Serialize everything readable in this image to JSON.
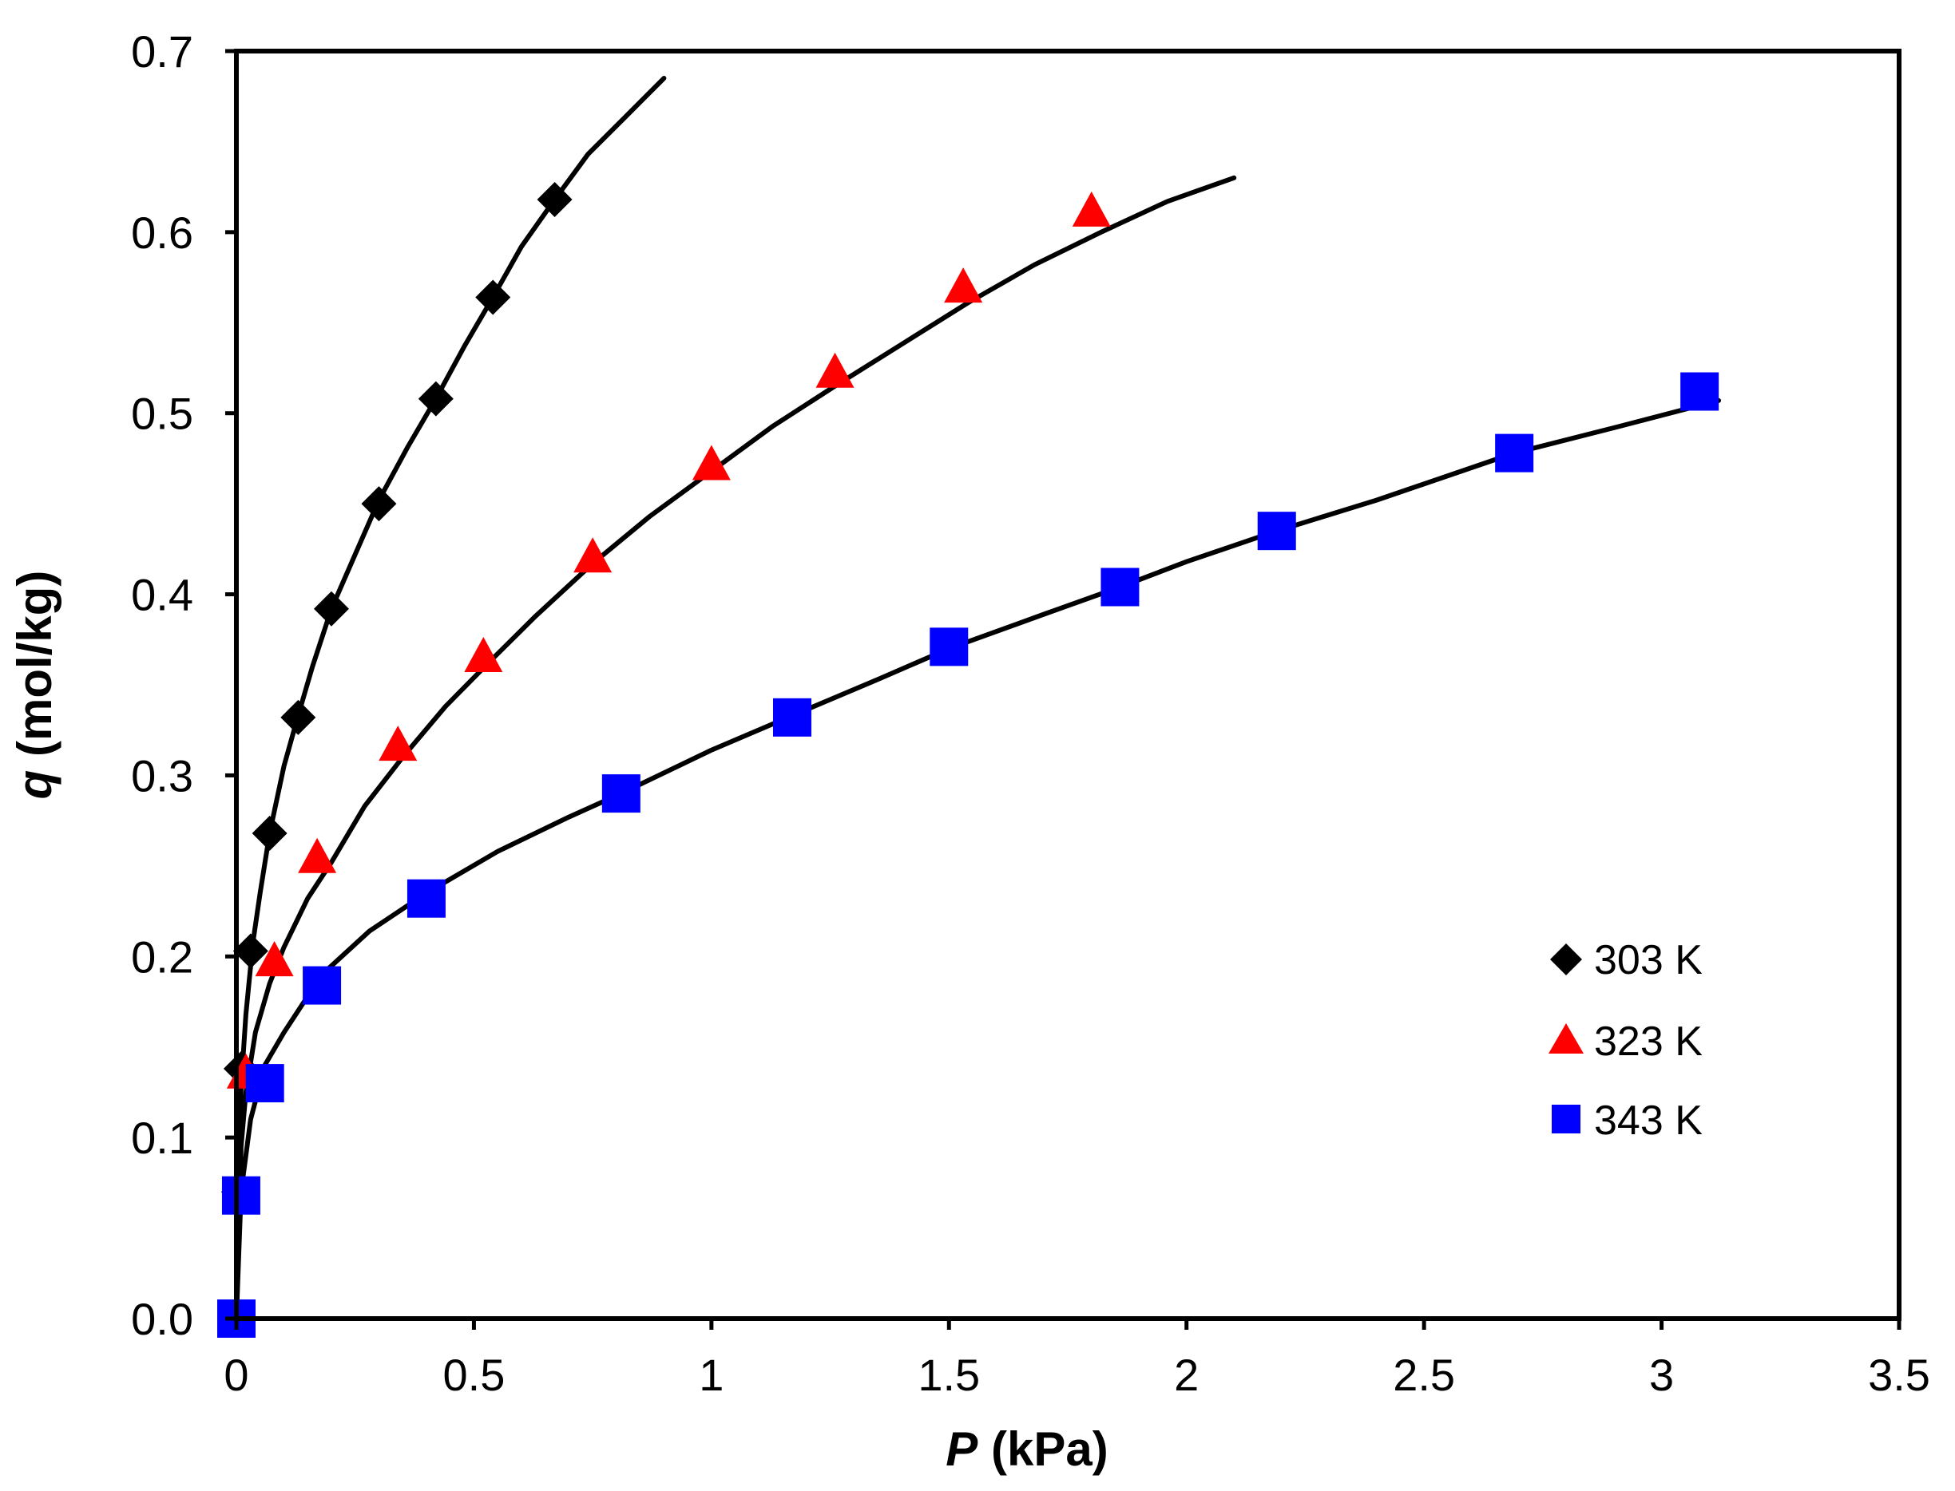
{
  "chart_data": {
    "type": "scatter",
    "xlabel_var": "P",
    "xlabel_unit": " (kPa)",
    "ylabel_var": "q",
    "ylabel_unit": " (mol/kg)",
    "xlim": [
      0,
      3.5
    ],
    "ylim": [
      0,
      0.7
    ],
    "xticks": [
      0,
      0.5,
      1,
      1.5,
      2,
      2.5,
      3,
      3.5
    ],
    "xtick_labels": [
      "0",
      "0.5",
      "1",
      "1.5",
      "2",
      "2.5",
      "3",
      "3.5"
    ],
    "yticks": [
      0,
      0.1,
      0.2,
      0.3,
      0.4,
      0.5,
      0.6,
      0.7
    ],
    "ytick_labels": [
      "0.0",
      "0.1",
      "0.2",
      "0.3",
      "0.4",
      "0.5",
      "0.6",
      "0.7"
    ],
    "legend_position": "bottom-right",
    "series": [
      {
        "name": "303 K",
        "marker": "diamond",
        "color": "#000000",
        "points": [
          [
            0,
            0
          ],
          [
            0.005,
            0.07
          ],
          [
            0.01,
            0.138
          ],
          [
            0.03,
            0.203
          ],
          [
            0.07,
            0.268
          ],
          [
            0.13,
            0.332
          ],
          [
            0.2,
            0.392
          ],
          [
            0.3,
            0.45
          ],
          [
            0.42,
            0.508
          ],
          [
            0.54,
            0.564
          ],
          [
            0.67,
            0.618
          ]
        ],
        "fit_x": [
          0,
          0.004,
          0.01,
          0.02,
          0.035,
          0.05,
          0.07,
          0.1,
          0.13,
          0.16,
          0.2,
          0.25,
          0.3,
          0.36,
          0.42,
          0.48,
          0.54,
          0.6,
          0.67,
          0.74,
          0.82,
          0.9
        ],
        "fit_y": [
          0,
          0.075,
          0.128,
          0.168,
          0.208,
          0.235,
          0.268,
          0.305,
          0.333,
          0.36,
          0.392,
          0.422,
          0.452,
          0.481,
          0.508,
          0.537,
          0.564,
          0.592,
          0.618,
          0.643,
          0.664,
          0.685
        ]
      },
      {
        "name": "323 K",
        "marker": "triangle",
        "color": "#ff0000",
        "points": [
          [
            0.02,
            0.135
          ],
          [
            0.08,
            0.197
          ],
          [
            0.17,
            0.254
          ],
          [
            0.34,
            0.316
          ],
          [
            0.52,
            0.365
          ],
          [
            0.75,
            0.42
          ],
          [
            1.0,
            0.471
          ],
          [
            1.26,
            0.522
          ],
          [
            1.53,
            0.569
          ],
          [
            1.8,
            0.611
          ]
        ],
        "fit_x": [
          0,
          0.01,
          0.02,
          0.04,
          0.07,
          0.1,
          0.15,
          0.2,
          0.27,
          0.35,
          0.44,
          0.53,
          0.63,
          0.75,
          0.87,
          1.0,
          1.13,
          1.26,
          1.4,
          1.54,
          1.68,
          1.82,
          1.96,
          2.1
        ],
        "fit_y": [
          0,
          0.095,
          0.125,
          0.158,
          0.185,
          0.205,
          0.232,
          0.252,
          0.283,
          0.31,
          0.338,
          0.362,
          0.388,
          0.417,
          0.443,
          0.468,
          0.493,
          0.515,
          0.538,
          0.561,
          0.582,
          0.6,
          0.617,
          0.63
        ]
      },
      {
        "name": "343 K",
        "marker": "square",
        "color": "#0000ff",
        "points": [
          [
            0,
            0
          ],
          [
            0.01,
            0.068
          ],
          [
            0.06,
            0.13
          ],
          [
            0.18,
            0.184
          ],
          [
            0.4,
            0.232
          ],
          [
            0.81,
            0.29
          ],
          [
            1.17,
            0.332
          ],
          [
            1.5,
            0.371
          ],
          [
            1.86,
            0.404
          ],
          [
            2.19,
            0.435
          ],
          [
            2.69,
            0.478
          ],
          [
            3.08,
            0.512
          ]
        ],
        "fit_x": [
          0,
          0.01,
          0.03,
          0.06,
          0.1,
          0.18,
          0.28,
          0.4,
          0.55,
          0.7,
          0.81,
          1.0,
          1.17,
          1.35,
          1.5,
          1.7,
          1.86,
          2.0,
          2.19,
          2.4,
          2.69,
          2.9,
          3.12
        ],
        "fit_y": [
          0,
          0.07,
          0.11,
          0.14,
          0.158,
          0.19,
          0.214,
          0.235,
          0.258,
          0.277,
          0.29,
          0.314,
          0.333,
          0.353,
          0.37,
          0.389,
          0.404,
          0.418,
          0.435,
          0.452,
          0.478,
          0.492,
          0.507
        ]
      }
    ]
  }
}
